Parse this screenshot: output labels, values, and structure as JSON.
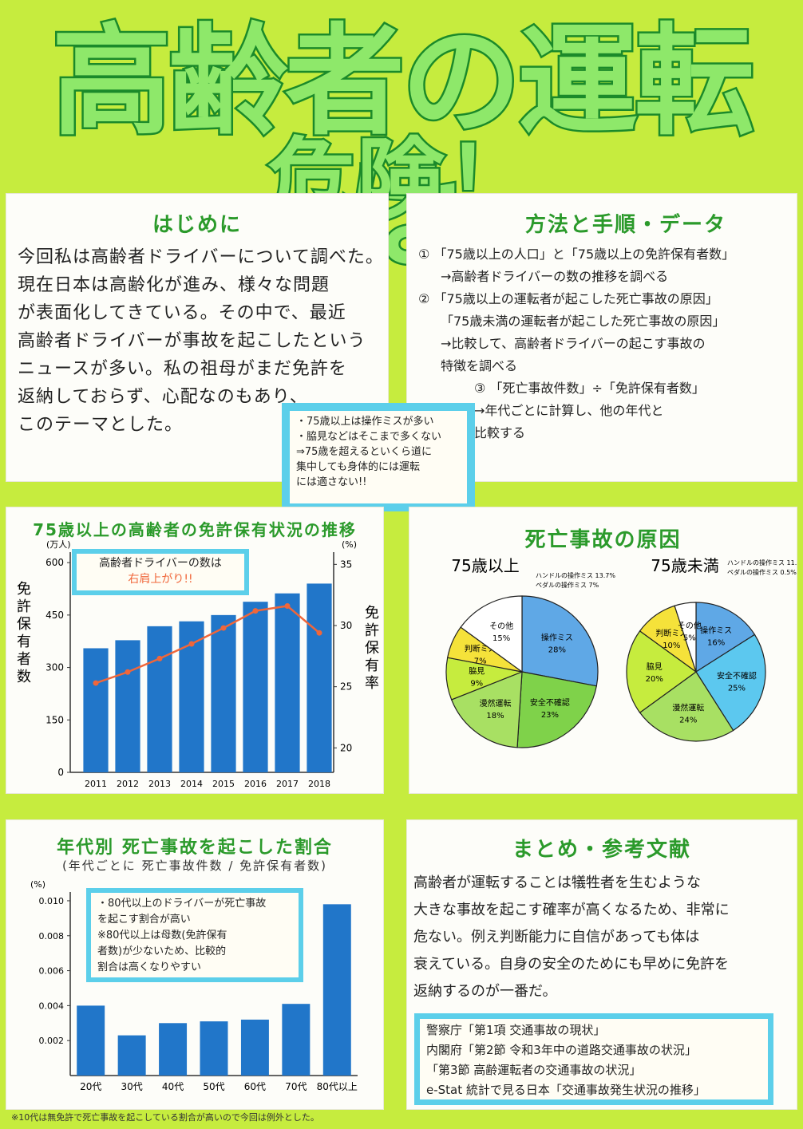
{
  "title": {
    "line1": "高齢者の運転は",
    "line2": "危険！"
  },
  "intro": {
    "heading": "はじめに",
    "lines": [
      "今回私は高齢者ドライバーについて調べた。",
      "現在日本は高齢化が進み、様々な問題",
      "が表面化してきている。その中で、最近",
      "高齢者ドライバーが事故を起こしたという",
      "ニュースが多い。私の祖母がまだ免許を",
      "返納しておらず、心配なのもあり、",
      "このテーマとした。"
    ]
  },
  "method": {
    "heading": "方法と手順・データ",
    "items": [
      {
        "num": "①",
        "text": "「75歳以上の人口」と「75歳以上の免許保有者数」"
      },
      {
        "num": "",
        "text": "→高齢者ドライバーの数の推移を調べる"
      },
      {
        "num": "②",
        "text": "「75歳以上の運転者が起こした死亡事故の原因」"
      },
      {
        "num": "",
        "text": "「75歳未満の運転者が起こした死亡事故の原因」"
      },
      {
        "num": "",
        "text": "→比較して、高齢者ドライバーの起こす事故の"
      },
      {
        "num": "",
        "text": "特徴を調べる"
      },
      {
        "num": "③",
        "text": "「死亡事故件数」÷「免許保有者数」"
      },
      {
        "num": "",
        "text": "→年代ごとに計算し、他の年代と"
      },
      {
        "num": "",
        "text": "比較する"
      }
    ]
  },
  "finding_note": {
    "lines": [
      "・75歳以上は操作ミスが多い",
      "・脇見などはそこまで多くない",
      "⇒75歳を超えるといくら道に",
      "集中しても身体的には運転",
      "には適さない!!"
    ]
  },
  "license_chart": {
    "heading": "75歳以上の高齢者の免許保有状況の推移",
    "note_line1": "高齢者ドライバーの数は",
    "note_line2": "右肩上がり!!",
    "left_unit": "(万人)",
    "right_unit": "(%)",
    "left_label": "免許保有者数",
    "right_label": "免許保有率"
  },
  "causes_chart": {
    "heading": "死亡事故の原因",
    "left_title": "75歳以上",
    "right_title": "75歳未満",
    "left_note1": "ハンドルの操作ミス 13.7%",
    "left_note2": "ペダルの操作ミス 7%",
    "right_note1": "ハンドルの操作ミス 11.3%",
    "right_note2": "ペダルの操作ミス 0.5%"
  },
  "age_chart": {
    "heading": "年代別 死亡事故を起こした割合",
    "subheading": "(年代ごとに 死亡事故件数 / 免許保有者数)",
    "unit": "(%)",
    "note_lines": [
      "・80代以上のドライバーが死亡事故",
      "を起こす割合が高い",
      "※80代以上は母数(免許保有",
      "者数)が少ないため、比較的",
      "割合は高くなりやすい"
    ],
    "footnote": "※10代は無免許で死亡事故を起こしている割合が高いので今回は例外とした。"
  },
  "summary": {
    "heading": "まとめ・参考文献",
    "lines": [
      "高齢者が運転することは犠牲者を生むような",
      "大きな事故を起こす確率が高くなるため、非常に",
      "危ない。例え判断能力に自信があっても体は",
      "衰えている。自身の安全のためにも早めに免許を",
      "返納するのが一番だ。"
    ],
    "references": [
      "警察庁「第1項 交通事故の現状」",
      "内閣府「第2節 令和3年中の道路交通事故の状況」",
      "「第3節 高齢運転者の交通事故の状況」",
      "e-Stat 統計で見る日本「交通事故発生状況の推移」"
    ]
  },
  "colors": {
    "bar": "#2176c9",
    "line": "#f0663a",
    "heading": "#2b9a2b",
    "background": "#c6ec3e"
  },
  "chart_data": [
    {
      "type": "bar",
      "title": "75歳以上の高齢者の免許保有状況の推移",
      "categories": [
        "2011",
        "2012",
        "2013",
        "2014",
        "2015",
        "2016",
        "2017",
        "2018"
      ],
      "series": [
        {
          "values": [
            355,
            378,
            418,
            432,
            450,
            488,
            512,
            540
          ]
        },
        {
          "type": "line",
          "values": [
            25.3,
            26.2,
            27.3,
            28.5,
            29.8,
            31.2,
            31.6,
            29.4
          ]
        }
      ],
      "ylabel": "免許保有者数",
      "y2label": "免許保有率",
      "yticks": [
        0,
        150,
        300,
        450,
        600
      ],
      "y2ticks": [
        20,
        25,
        30,
        35
      ],
      "ylim": [
        0,
        630
      ],
      "y2lim": [
        18,
        36
      ]
    },
    {
      "type": "pie",
      "title": "75歳以上",
      "slices": [
        {
          "label": "操作ミス",
          "value": 28,
          "color": "#5fa8e6"
        },
        {
          "label": "安全不確認",
          "value": 23,
          "color": "#7fd24a"
        },
        {
          "label": "漫然運転",
          "value": 18,
          "color": "#a8e063"
        },
        {
          "label": "脇見",
          "value": 9,
          "color": "#c6ec3e"
        },
        {
          "label": "判断ミス",
          "value": 7,
          "color": "#f5e23a"
        },
        {
          "label": "その他",
          "value": 15,
          "color": "#ffffff"
        }
      ],
      "value_labels": [
        "28%",
        "23%",
        "18%",
        "9%",
        "7%",
        "15%"
      ]
    },
    {
      "type": "pie",
      "title": "75歳未満",
      "slices": [
        {
          "label": "操作ミス",
          "value": 16,
          "color": "#5fa8e6"
        },
        {
          "label": "安全不確認",
          "value": 25,
          "color": "#5cc8ef"
        },
        {
          "label": "漫然運転",
          "value": 24,
          "color": "#a8e063"
        },
        {
          "label": "脇見",
          "value": 20,
          "color": "#c6ec3e"
        },
        {
          "label": "判断ミス",
          "value": 10,
          "color": "#f5e23a"
        },
        {
          "label": "その他",
          "value": 5,
          "color": "#ffffff"
        }
      ],
      "value_labels": [
        "16%",
        "25%",
        "24%",
        "20%",
        "10%",
        "5%"
      ]
    },
    {
      "type": "bar",
      "title": "年代別 死亡事故を起こした割合",
      "categories": [
        "20代",
        "30代",
        "40代",
        "50代",
        "60代",
        "70代",
        "80代以上"
      ],
      "values": [
        0.004,
        0.0023,
        0.003,
        0.0031,
        0.0032,
        0.0041,
        0.0098
      ],
      "ylabel": "(%)",
      "yticks": [
        "0.002",
        "0.004",
        "0.006",
        "0.008",
        "0.010"
      ],
      "ylim": [
        0,
        0.0105
      ]
    }
  ]
}
